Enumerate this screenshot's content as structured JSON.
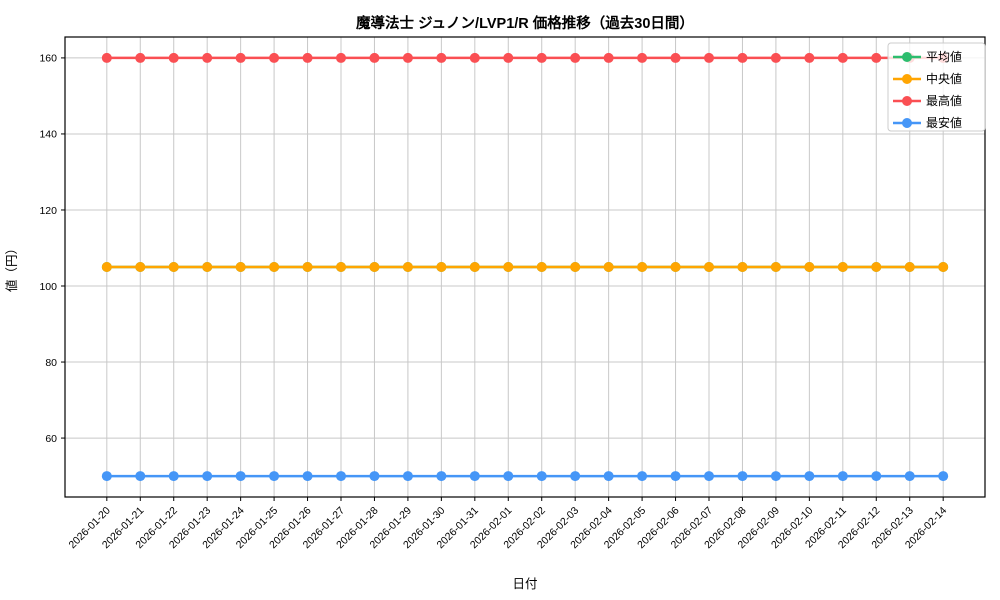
{
  "chart_data": {
    "type": "line",
    "title": "魔導法士 ジュノン/LVP1/R 価格推移（過去30日間）",
    "xlabel": "日付",
    "ylabel": "値（円）",
    "x": [
      "2026-01-20",
      "2026-01-21",
      "2026-01-22",
      "2026-01-23",
      "2026-01-24",
      "2026-01-25",
      "2026-01-26",
      "2026-01-27",
      "2026-01-28",
      "2026-01-29",
      "2026-01-30",
      "2026-01-31",
      "2026-02-01",
      "2026-02-02",
      "2026-02-03",
      "2026-02-04",
      "2026-02-05",
      "2026-02-06",
      "2026-02-07",
      "2026-02-08",
      "2026-02-09",
      "2026-02-10",
      "2026-02-11",
      "2026-02-12",
      "2026-02-13",
      "2026-02-14"
    ],
    "series": [
      {
        "key": "average",
        "name": "平均値",
        "color": "#2dbd6e",
        "values": [
          105,
          105,
          105,
          105,
          105,
          105,
          105,
          105,
          105,
          105,
          105,
          105,
          105,
          105,
          105,
          105,
          105,
          105,
          105,
          105,
          105,
          105,
          105,
          105,
          105,
          105
        ]
      },
      {
        "key": "median",
        "name": "中央値",
        "color": "#ffa502",
        "values": [
          105,
          105,
          105,
          105,
          105,
          105,
          105,
          105,
          105,
          105,
          105,
          105,
          105,
          105,
          105,
          105,
          105,
          105,
          105,
          105,
          105,
          105,
          105,
          105,
          105,
          105
        ]
      },
      {
        "key": "max",
        "name": "最高値",
        "color": "#fa4f53",
        "values": [
          160,
          160,
          160,
          160,
          160,
          160,
          160,
          160,
          160,
          160,
          160,
          160,
          160,
          160,
          160,
          160,
          160,
          160,
          160,
          160,
          160,
          160,
          160,
          160,
          160,
          160
        ]
      },
      {
        "key": "min",
        "name": "最安値",
        "color": "#4596f7",
        "values": [
          50,
          50,
          50,
          50,
          50,
          50,
          50,
          50,
          50,
          50,
          50,
          50,
          50,
          50,
          50,
          50,
          50,
          50,
          50,
          50,
          50,
          50,
          50,
          50,
          50,
          50
        ]
      }
    ],
    "ylim": [
      44.5,
      165.5
    ],
    "yticks": [
      60,
      80,
      100,
      120,
      140,
      160
    ],
    "grid": true,
    "grid_color": "#c8c8c8",
    "axis_color": "#000000",
    "legend_position": "top-right",
    "legend_border_color": "#cccccc",
    "x_tick_rotation": 45
  }
}
